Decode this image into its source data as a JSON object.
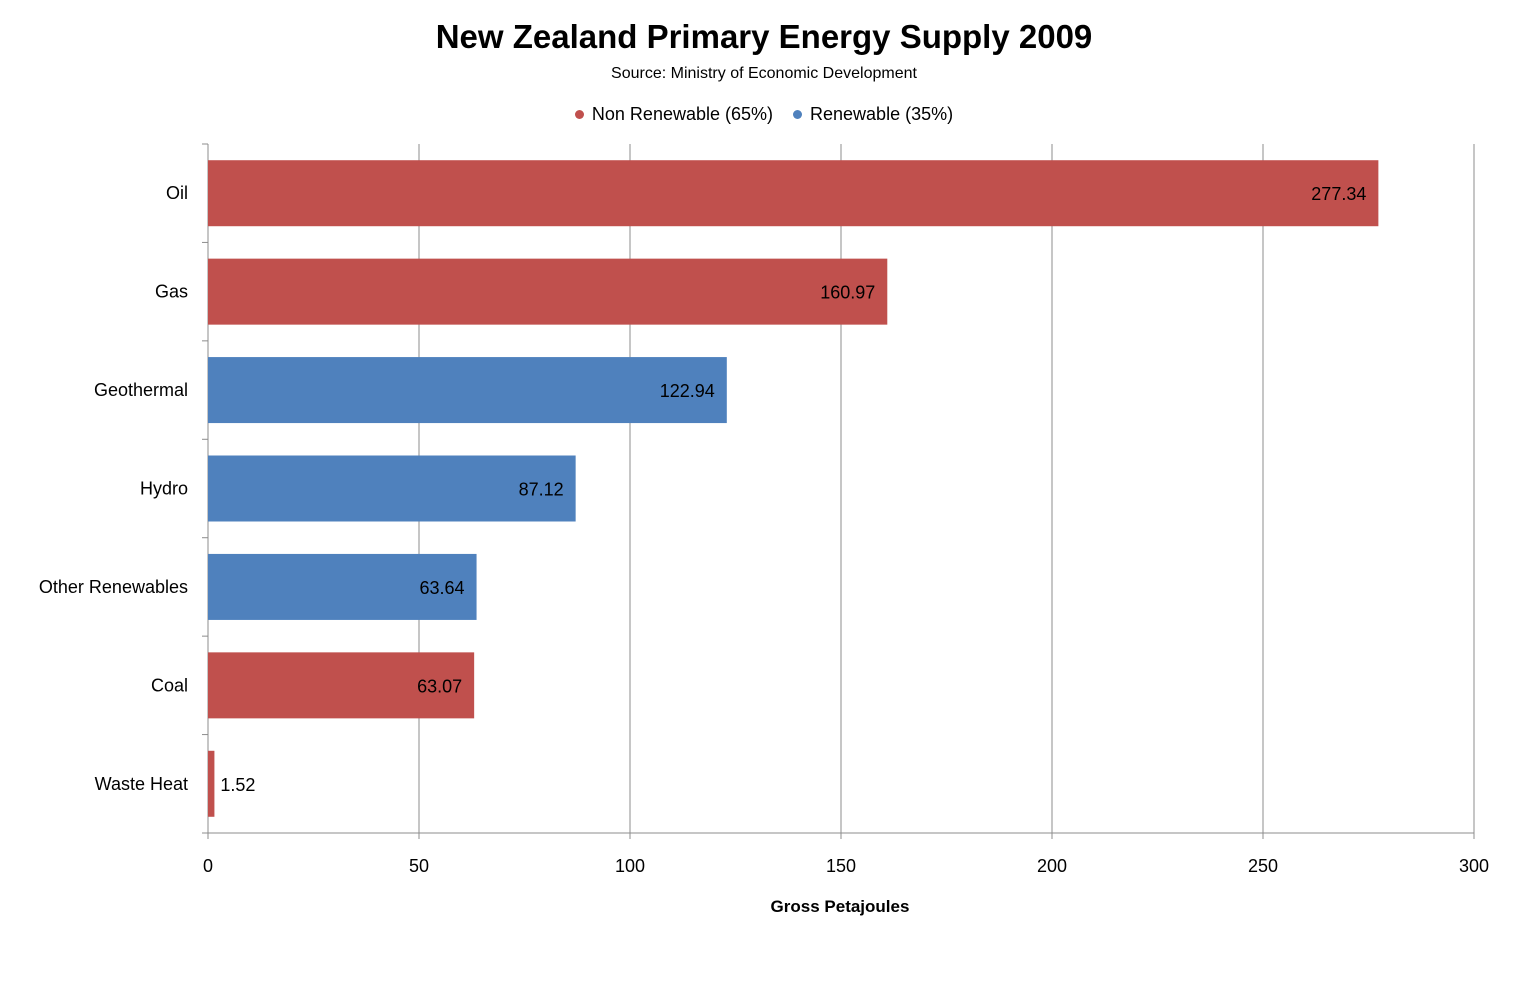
{
  "chart_data": {
    "type": "bar",
    "orientation": "horizontal",
    "title": "New Zealand Primary Energy Supply 2009",
    "subtitle": "Source: Ministry of Economic Development",
    "xlabel": "Gross Petajoules",
    "ylabel": "",
    "xlim": [
      0,
      300
    ],
    "xticks": [
      0,
      50,
      100,
      150,
      200,
      250,
      300
    ],
    "grid": true,
    "legend_position": "top-center",
    "legend": [
      {
        "name": "Non Renewable (65%)",
        "color": "#c0504d"
      },
      {
        "name": "Renewable (35%)",
        "color": "#4f81bd"
      }
    ],
    "categories": [
      "Oil",
      "Gas",
      "Geothermal",
      "Hydro",
      "Other Renewables",
      "Coal",
      "Waste Heat"
    ],
    "values": [
      277.34,
      160.97,
      122.94,
      87.12,
      63.64,
      63.07,
      1.52
    ],
    "value_labels": [
      "277.34",
      "160.97",
      "122.94",
      "87.12",
      "63.64",
      "63.07",
      "1.52"
    ],
    "series_membership": [
      "Non Renewable (65%)",
      "Non Renewable (65%)",
      "Renewable (35%)",
      "Renewable (35%)",
      "Renewable (35%)",
      "Non Renewable (65%)",
      "Non Renewable (65%)"
    ]
  }
}
